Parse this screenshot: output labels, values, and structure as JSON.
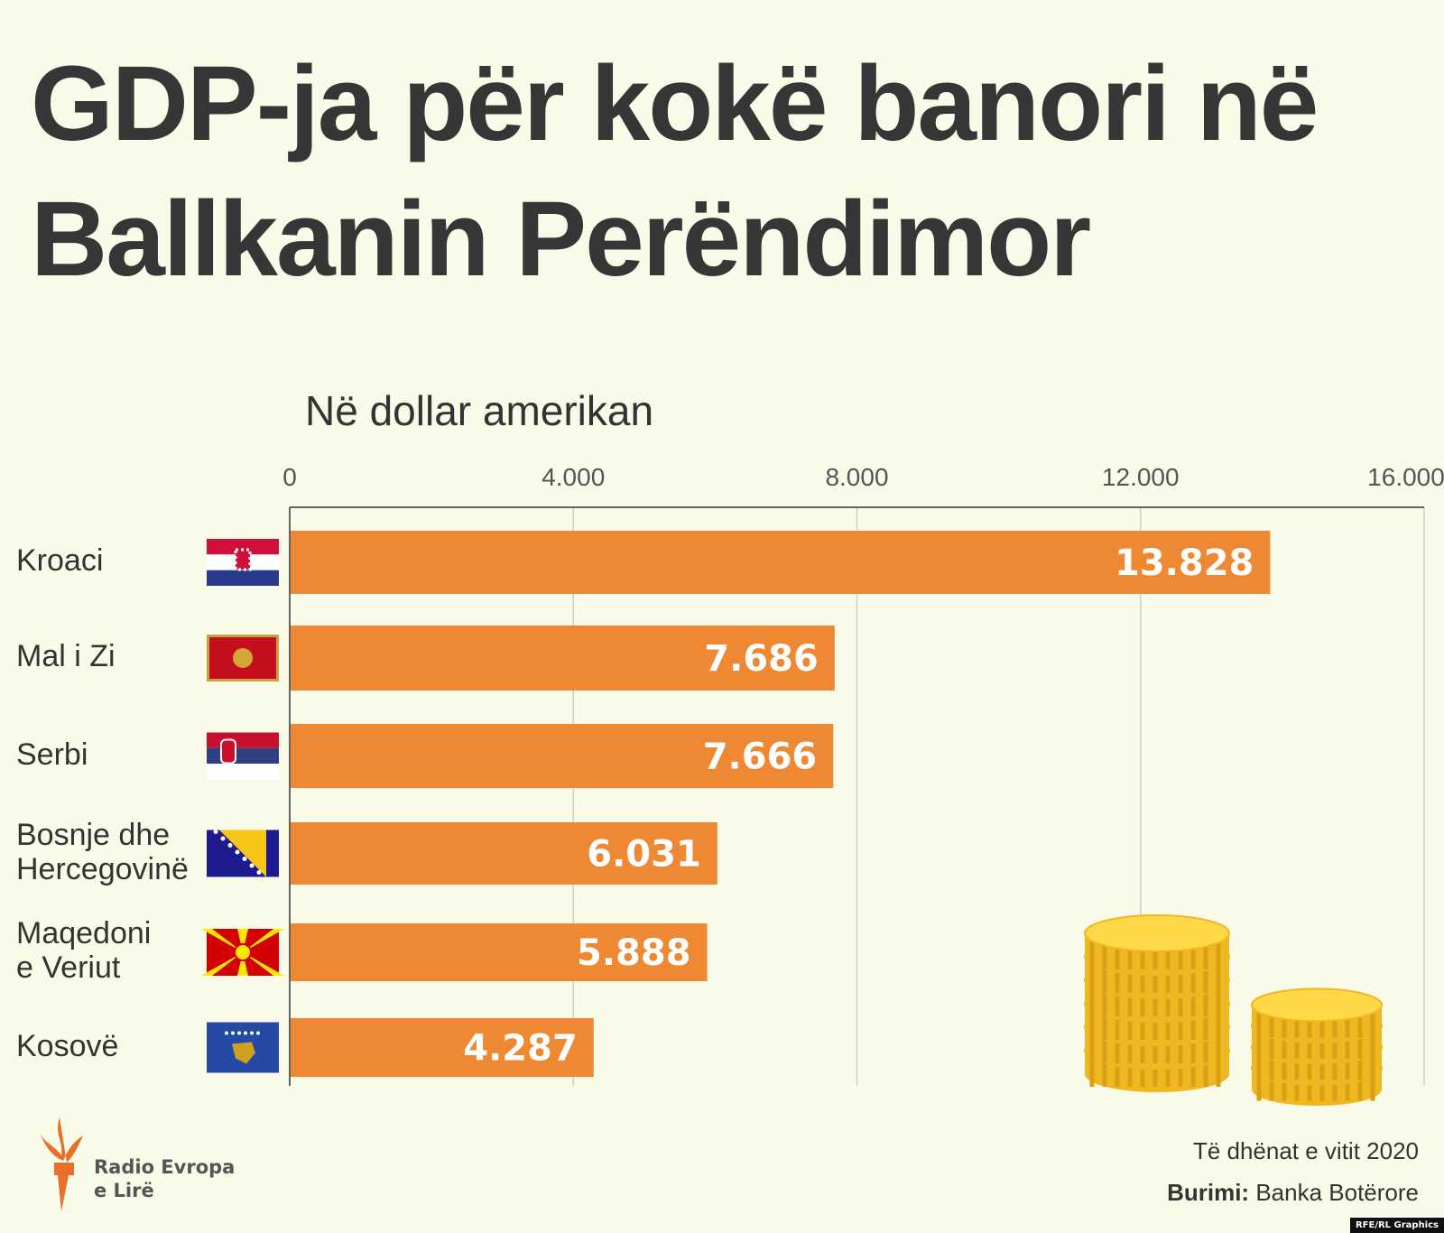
{
  "title_line1": "GDP-ja për kokë banori në",
  "title_line2": "Ballkanin Perëndimor",
  "chart_data": {
    "type": "bar",
    "orientation": "horizontal",
    "title": "GDP-ja për kokë banori në Ballkanin Perëndimor",
    "subtitle": "Në dollar amerikan",
    "categories": [
      "Kroaci",
      "Mal i Zi",
      "Serbi",
      "Bosnje dhe Hercegovinë",
      "Maqedoni e Veriut",
      "Kosovë"
    ],
    "values": [
      13828,
      7686,
      7666,
      6031,
      5888,
      4287
    ],
    "value_labels": [
      "13.828",
      "7.686",
      "7.666",
      "6.031",
      "5.888",
      "4.287"
    ],
    "xlim": [
      0,
      16000
    ],
    "xticks": [
      0,
      4000,
      8000,
      12000,
      16000
    ],
    "xtick_labels": [
      "0",
      "4.000",
      "8.000",
      "12.000",
      "16.000"
    ],
    "axis_position": "top",
    "grid": true,
    "bar_color": "#ee8833"
  },
  "flags": [
    "croatia-flag",
    "montenegro-flag",
    "serbia-flag",
    "bosnia-flag",
    "north-macedonia-flag",
    "kosovo-flag"
  ],
  "label_lines": [
    [
      "Kroaci"
    ],
    [
      "Mal i Zi"
    ],
    [
      "Serbi"
    ],
    [
      "Bosnje dhe",
      "Hercegovinë"
    ],
    [
      "Maqedoni",
      "e Veriut"
    ],
    [
      "Kosovë"
    ]
  ],
  "footer": {
    "data_year": "Të dhënat e vitit 2020",
    "source_label": "Burimi:",
    "source": "Banka Botërore",
    "logo_line1": "Radio Evropa",
    "logo_line2": "e Lirë",
    "credit": "RFE/RL Graphics"
  }
}
